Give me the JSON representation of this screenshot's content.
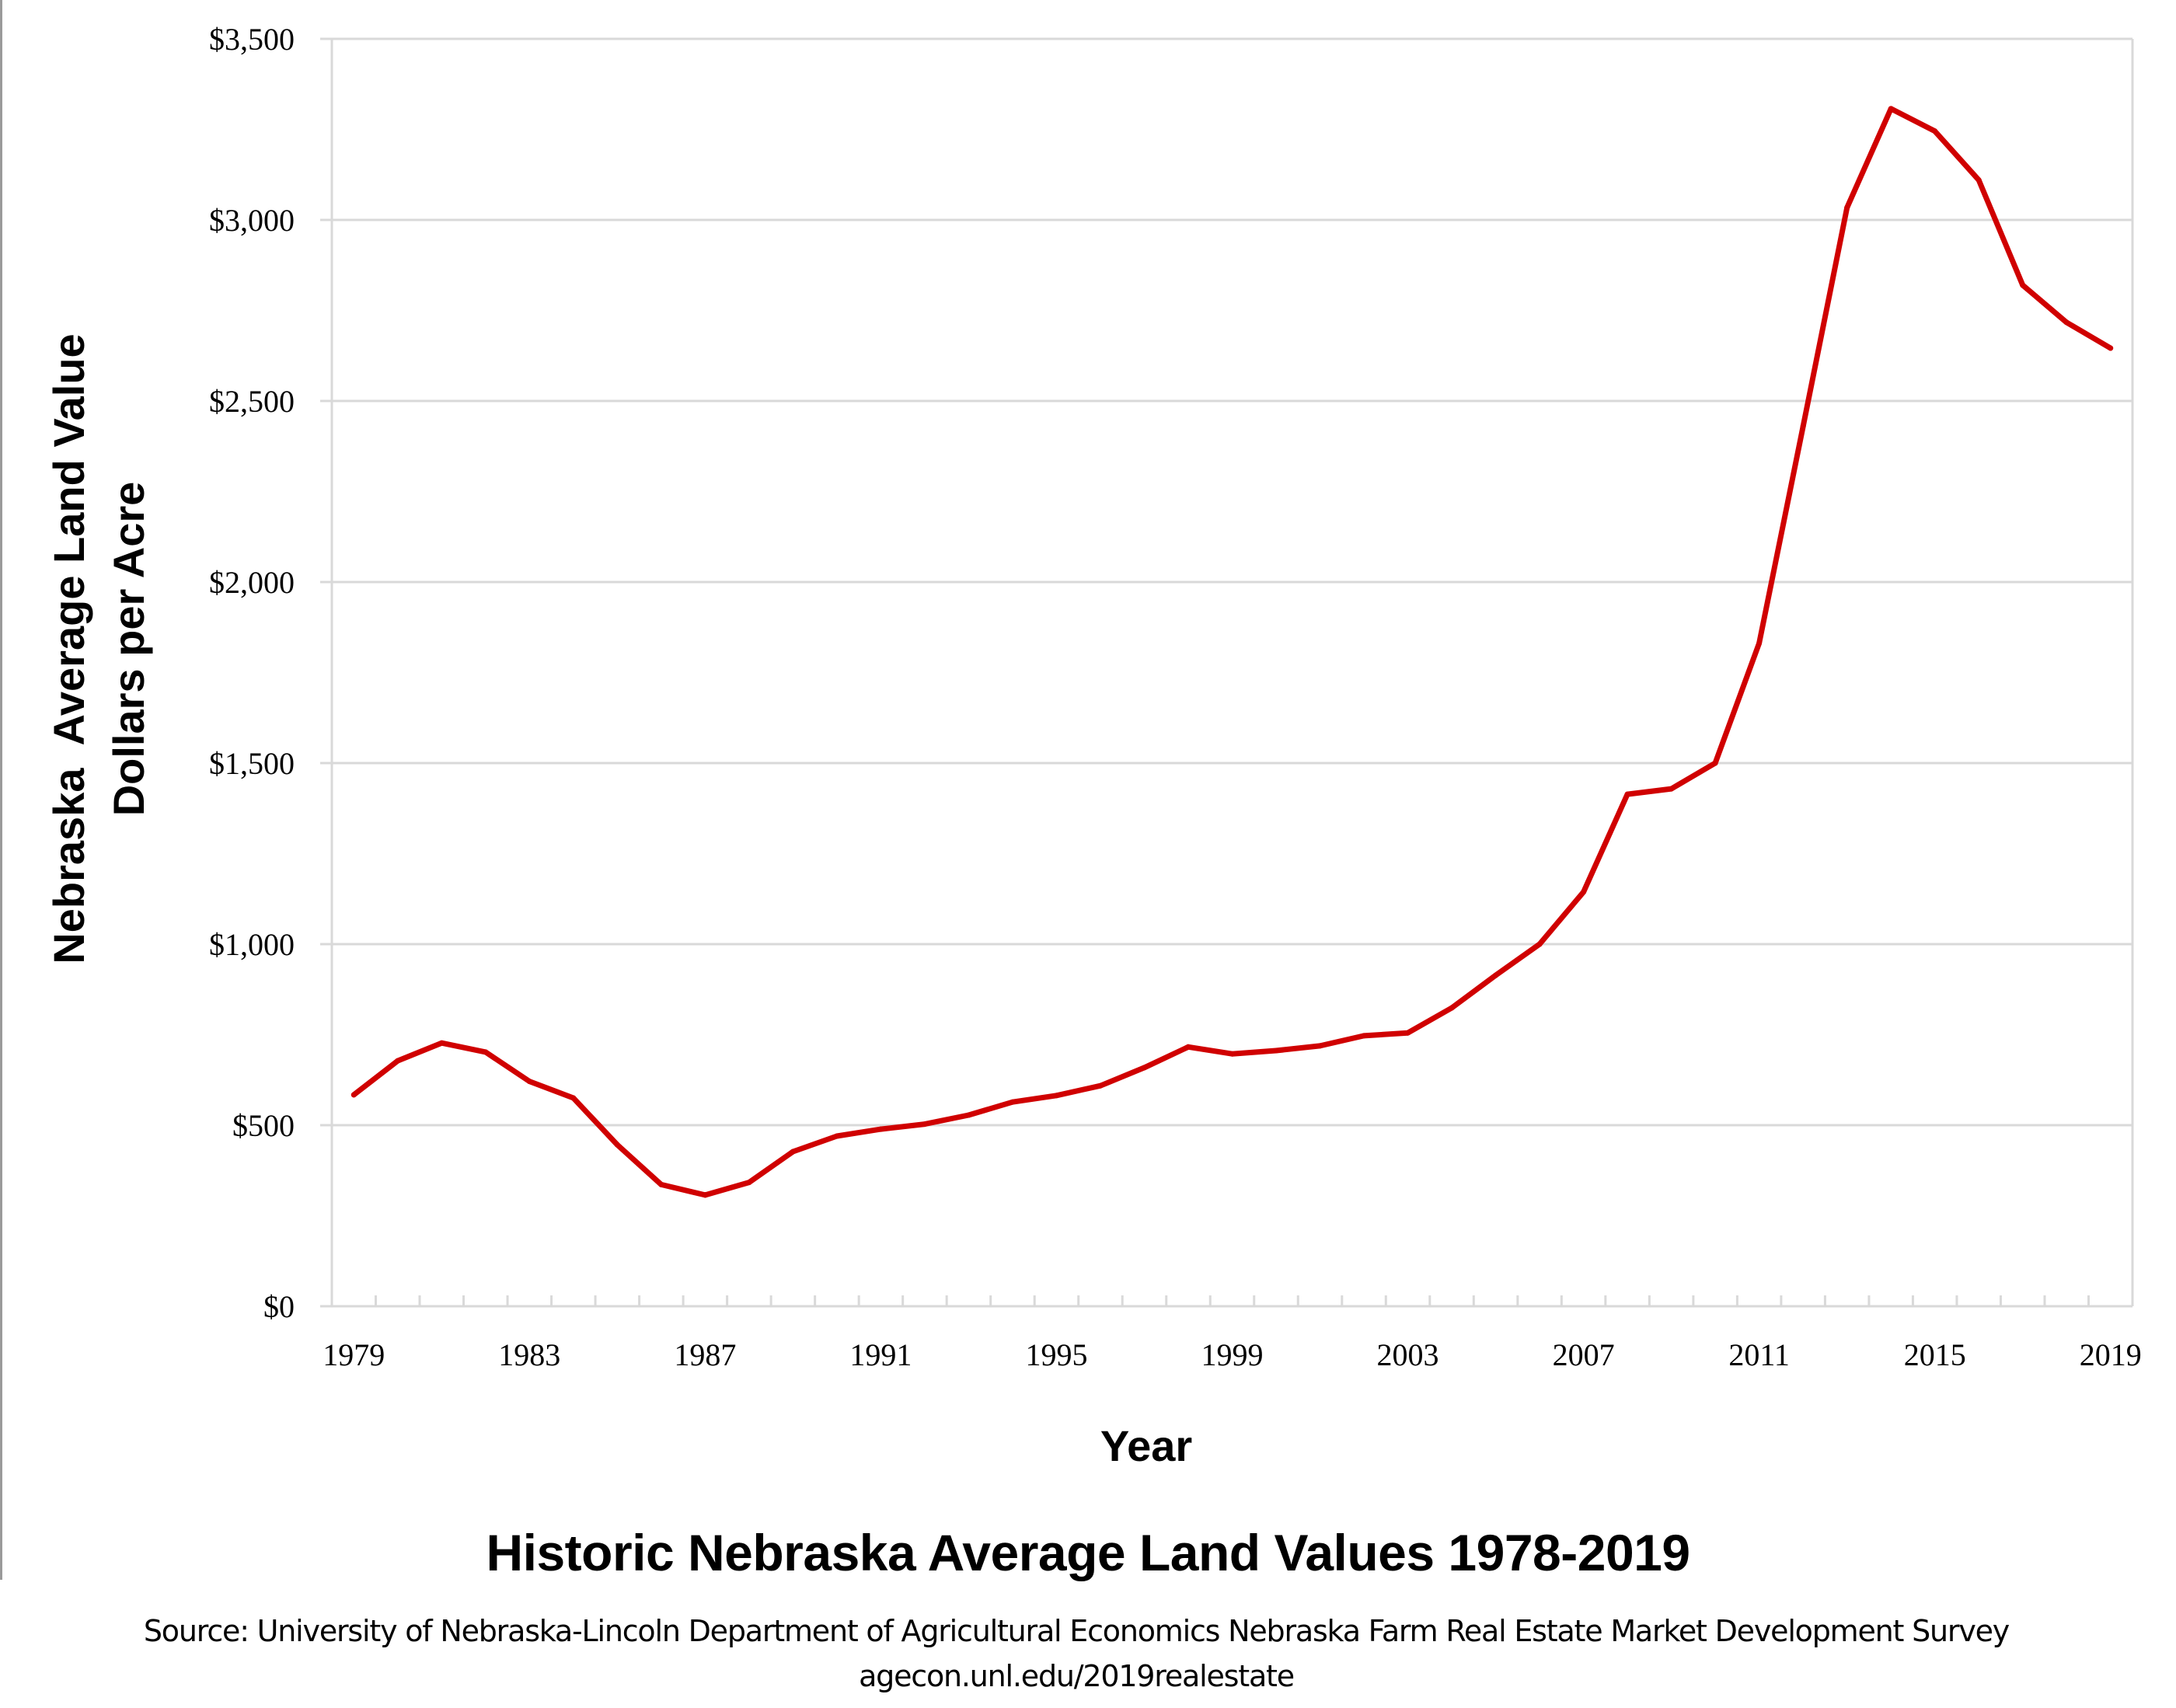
{
  "chart_data": {
    "type": "line",
    "title": "Historic Nebraska Average Land Values 1978-2019",
    "xlabel": "Year",
    "ylabel_lines": [
      "Nebraska  Average Land Value",
      "Dollars per Acre"
    ],
    "ylim": [
      0,
      3500
    ],
    "yticks": [
      0,
      500,
      1000,
      1500,
      2000,
      2500,
      3000,
      3500
    ],
    "ytick_labels": [
      "$0",
      "$500",
      "$1,000",
      "$1,500",
      "$2,000",
      "$2,500",
      "$3,000",
      "$3,500"
    ],
    "xtick_labels": [
      "1979",
      "1983",
      "1987",
      "1991",
      "1995",
      "1999",
      "2003",
      "2007",
      "2011",
      "2015",
      "2019"
    ],
    "grid": "horizontal",
    "legend": "none",
    "x": [
      1979,
      1980,
      1981,
      1982,
      1983,
      1984,
      1985,
      1986,
      1987,
      1988,
      1989,
      1990,
      1991,
      1992,
      1993,
      1994,
      1995,
      1996,
      1997,
      1998,
      1999,
      2000,
      2001,
      2002,
      2003,
      2004,
      2005,
      2006,
      2007,
      2008,
      2009,
      2010,
      2011,
      2012,
      2013,
      2014,
      2015,
      2016,
      2017,
      2018,
      2019
    ],
    "series": [
      {
        "name": "Nebraska Average Land Value ($/acre)",
        "color": "#D00000",
        "values": [
          584,
          678,
          727,
          702,
          621,
          575,
          446,
          336,
          307,
          342,
          427,
          470,
          489,
          503,
          528,
          564,
          582,
          609,
          659,
          716,
          697,
          706,
          719,
          747,
          755,
          824,
          914,
          1000,
          1144,
          1414,
          1429,
          1500,
          1831,
          2430,
          3034,
          3307,
          3245,
          3110,
          2820,
          2717,
          2646
        ]
      }
    ]
  },
  "colors": {
    "line": "#D00000",
    "grid": "#D9D9D9",
    "text": "#000000"
  },
  "source": {
    "line1": "Source: University of Nebraska-Lincoln Department of Agricultural Economics Nebraska Farm Real Estate Market Development Survey",
    "line2": "agecon.unl.edu/2019realestate"
  }
}
